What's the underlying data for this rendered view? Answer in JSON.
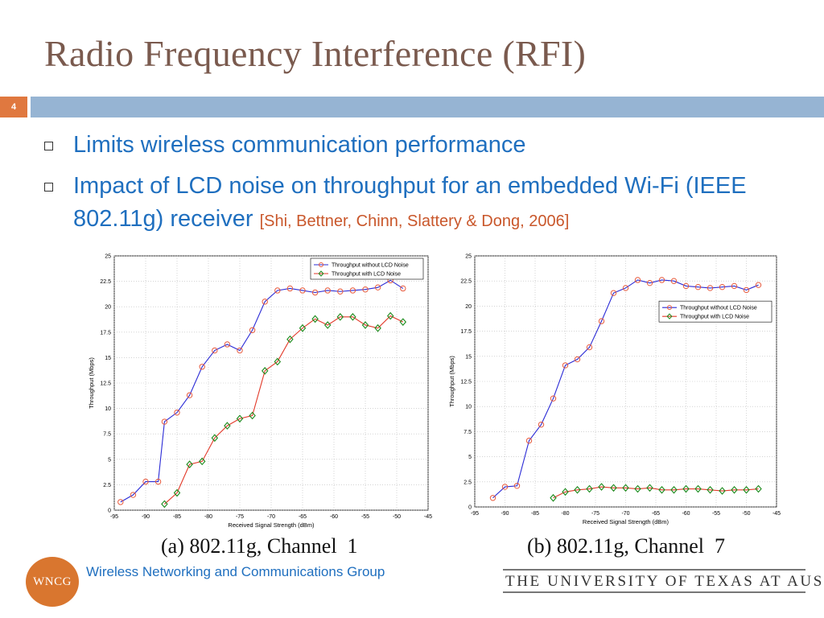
{
  "slide": {
    "title": "Radio Frequency Interference (RFI)",
    "number": "4",
    "bullets": [
      {
        "text": "Limits wireless communication performance",
        "citation": ""
      },
      {
        "text": "Impact of LCD noise on throughput for an embedded Wi-Fi (IEEE 802.11g) receiver ",
        "citation": "[Shi, Bettner, Chinn, Slattery & Dong, 2006]"
      }
    ],
    "colors": {
      "title": "#7a5a4e",
      "accent_bar": "#96b4d3",
      "number_box": "#e0783f",
      "bullet_text": "#1f6fbf",
      "citation": "#c9572b"
    }
  },
  "footer": {
    "logo_text": "WNCG",
    "group_name": "Wireless Networking and Communications Group",
    "university": "THE UNIVERSITY OF TEXAS AT AUSTIN"
  },
  "chart_data": [
    {
      "type": "line",
      "caption": "(a) 802.11g, Channel  1",
      "xlabel": "Received Signal Strength (dBm)",
      "ylabel": "Throughput (Mbps)",
      "xlim": [
        -95,
        -45
      ],
      "ylim": [
        0,
        25
      ],
      "xticks": [
        -95,
        -90,
        -85,
        -80,
        -75,
        -70,
        -65,
        -60,
        -55,
        -50,
        -45
      ],
      "yticks": [
        0,
        2.5,
        5,
        7.5,
        10,
        12.5,
        15,
        17.5,
        20,
        22.5,
        25
      ],
      "grid": true,
      "legend": "top-right",
      "series": [
        {
          "name": "Throughput without LCD Noise",
          "color": "#2b2bd6",
          "marker_color": "#e85a3c",
          "marker": "circle",
          "x": [
            -94,
            -92,
            -90,
            -88,
            -87,
            -85,
            -83,
            -81,
            -79,
            -77,
            -75,
            -73,
            -71,
            -69,
            -67,
            -65,
            -63,
            -61,
            -59,
            -57,
            -55,
            -53,
            -51,
            -49
          ],
          "y": [
            0.8,
            1.5,
            2.8,
            2.8,
            8.7,
            9.6,
            11.3,
            14.1,
            15.7,
            16.3,
            15.7,
            17.7,
            20.5,
            21.6,
            21.8,
            21.6,
            21.4,
            21.6,
            21.5,
            21.6,
            21.7,
            21.9,
            22.6,
            21.8
          ]
        },
        {
          "name": "Throughput with LCD Noise",
          "color": "#e23a2a",
          "marker_color": "#1a8a1a",
          "marker": "diamond",
          "x": [
            -87,
            -85,
            -83,
            -81,
            -79,
            -77,
            -75,
            -73,
            -71,
            -69,
            -67,
            -65,
            -63,
            -61,
            -59,
            -57,
            -55,
            -53,
            -51,
            -49
          ],
          "y": [
            0.6,
            1.7,
            4.5,
            4.8,
            7.1,
            8.3,
            9.0,
            9.3,
            13.7,
            14.6,
            16.8,
            17.9,
            18.8,
            18.2,
            19.0,
            19.0,
            18.2,
            17.9,
            19.1,
            18.5
          ]
        }
      ]
    },
    {
      "type": "line",
      "caption": "(b) 802.11g, Channel  7",
      "xlabel": "Received Signal Strength (dBm)",
      "ylabel": "Throughput (Mbps)",
      "xlim": [
        -95,
        -45
      ],
      "ylim": [
        0,
        25
      ],
      "xticks": [
        -95,
        -90,
        -85,
        -80,
        -75,
        -70,
        -65,
        -60,
        -55,
        -50,
        -45
      ],
      "yticks": [
        0,
        2.5,
        5,
        7.5,
        10,
        12.5,
        15,
        17.5,
        20,
        22.5,
        25
      ],
      "grid": true,
      "legend": "center-right",
      "series": [
        {
          "name": "Throughput without LCD Noise",
          "color": "#2b2bd6",
          "marker_color": "#e85a3c",
          "marker": "circle",
          "x": [
            -92,
            -90,
            -88,
            -86,
            -84,
            -82,
            -80,
            -78,
            -76,
            -74,
            -72,
            -70,
            -68,
            -66,
            -64,
            -62,
            -60,
            -58,
            -56,
            -54,
            -52,
            -50,
            -48
          ],
          "y": [
            0.9,
            2.0,
            2.1,
            6.6,
            8.2,
            10.8,
            14.1,
            14.7,
            15.9,
            18.5,
            21.3,
            21.8,
            22.6,
            22.3,
            22.6,
            22.5,
            22.0,
            21.9,
            21.8,
            21.9,
            22.0,
            21.6,
            22.1
          ]
        },
        {
          "name": "Throughput with LCD Noise",
          "color": "#e23a2a",
          "marker_color": "#1a8a1a",
          "marker": "diamond",
          "x": [
            -82,
            -80,
            -78,
            -76,
            -74,
            -72,
            -70,
            -68,
            -66,
            -64,
            -62,
            -60,
            -58,
            -56,
            -54,
            -52,
            -50,
            -48
          ],
          "y": [
            0.9,
            1.5,
            1.7,
            1.8,
            2.0,
            1.9,
            1.9,
            1.8,
            1.9,
            1.7,
            1.7,
            1.8,
            1.8,
            1.7,
            1.6,
            1.7,
            1.7,
            1.8
          ]
        }
      ]
    }
  ]
}
